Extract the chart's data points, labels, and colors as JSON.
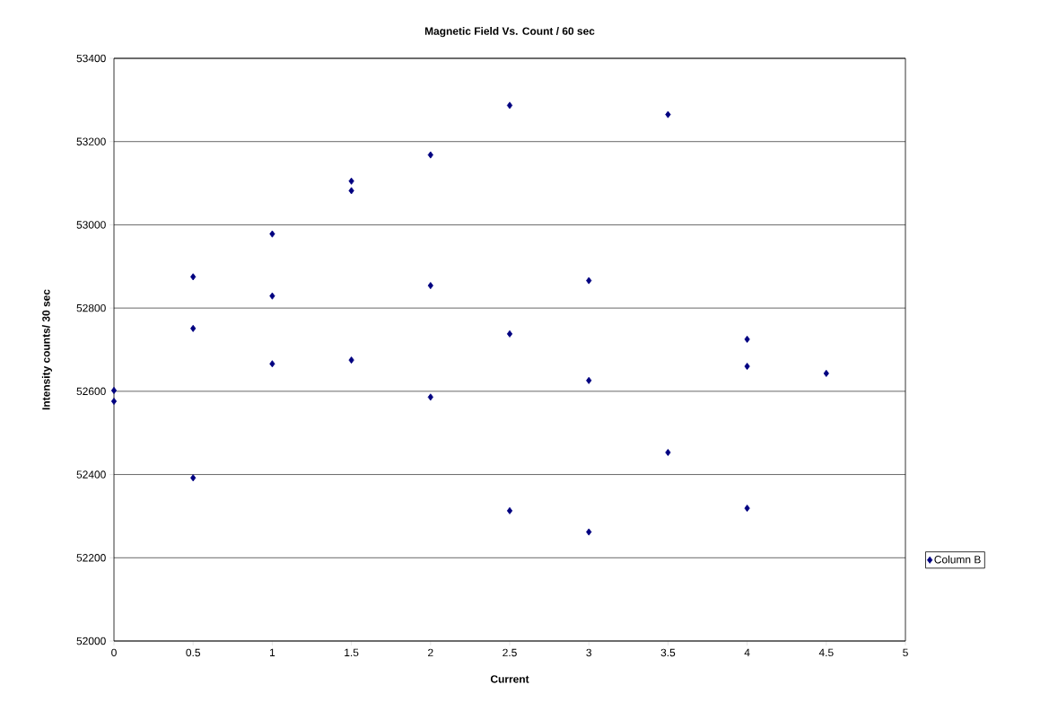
{
  "chart_data": {
    "type": "scatter",
    "title": "Magnetic Field Vs. Count / 60 sec",
    "xlabel": "Current",
    "ylabel": "Intensity counts/ 30 sec",
    "series": [
      {
        "name": "Column B",
        "color": "#000080",
        "x": [
          0,
          0,
          0.5,
          0.5,
          0.5,
          1,
          1,
          1,
          1.5,
          1.5,
          1.5,
          2,
          2,
          2,
          2.5,
          2.5,
          2.5,
          3,
          3,
          3,
          3.5,
          3.5,
          4,
          4,
          4,
          4.5
        ],
        "values": [
          52602,
          52576,
          52875,
          52751,
          52392,
          52978,
          52829,
          52666,
          53105,
          53082,
          52675,
          53168,
          52854,
          52586,
          53287,
          52738,
          52313,
          52866,
          52626,
          52262,
          53265,
          52453,
          52725,
          52660,
          52319,
          52643
        ]
      }
    ],
    "xlim": [
      0,
      5
    ],
    "ylim": [
      52000,
      53400
    ],
    "xticks": [
      0,
      0.5,
      1,
      1.5,
      2,
      2.5,
      3,
      3.5,
      4,
      4.5,
      5
    ],
    "yticks": [
      52000,
      52200,
      52400,
      52600,
      52800,
      53000,
      53200,
      53400
    ],
    "grid": "y",
    "legend": "right",
    "marker": "diamond"
  }
}
